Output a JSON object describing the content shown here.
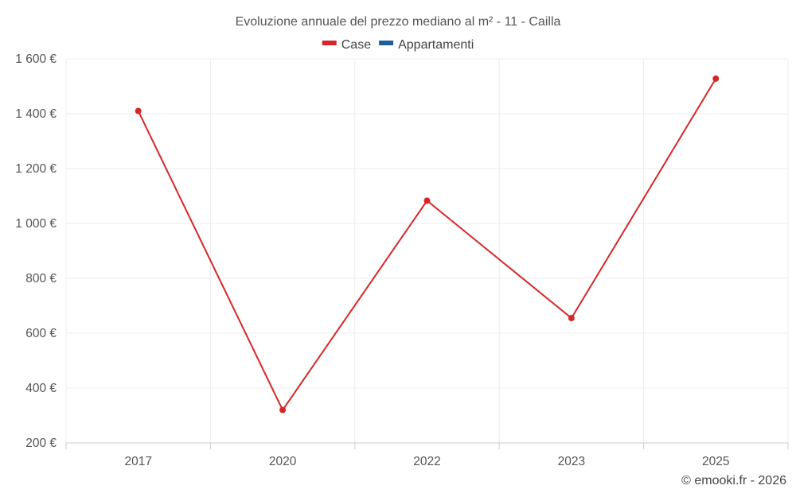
{
  "chart_data": {
    "type": "line",
    "title": "Evoluzione annuale del prezzo mediano al m² - 11 - Cailla",
    "categories": [
      "2017",
      "2020",
      "2022",
      "2023",
      "2025"
    ],
    "series": [
      {
        "name": "Case",
        "color": "#d62728",
        "values": [
          1410,
          320,
          1083,
          655,
          1528
        ]
      },
      {
        "name": "Appartamenti",
        "color": "#1f5f99",
        "values": [
          null,
          null,
          null,
          null,
          null
        ]
      }
    ],
    "ylim": [
      200,
      1600
    ],
    "yticks": [
      200,
      400,
      600,
      800,
      1000,
      1200,
      1400,
      1600
    ],
    "ytick_labels": [
      "200 €",
      "400 €",
      "600 €",
      "800 €",
      "1 000 €",
      "1 200 €",
      "1 400 €",
      "1 600 €"
    ],
    "xlabel": "",
    "ylabel": "",
    "grid": true,
    "legend_position": "top-center"
  },
  "credit": "© emooki.fr - 2026"
}
